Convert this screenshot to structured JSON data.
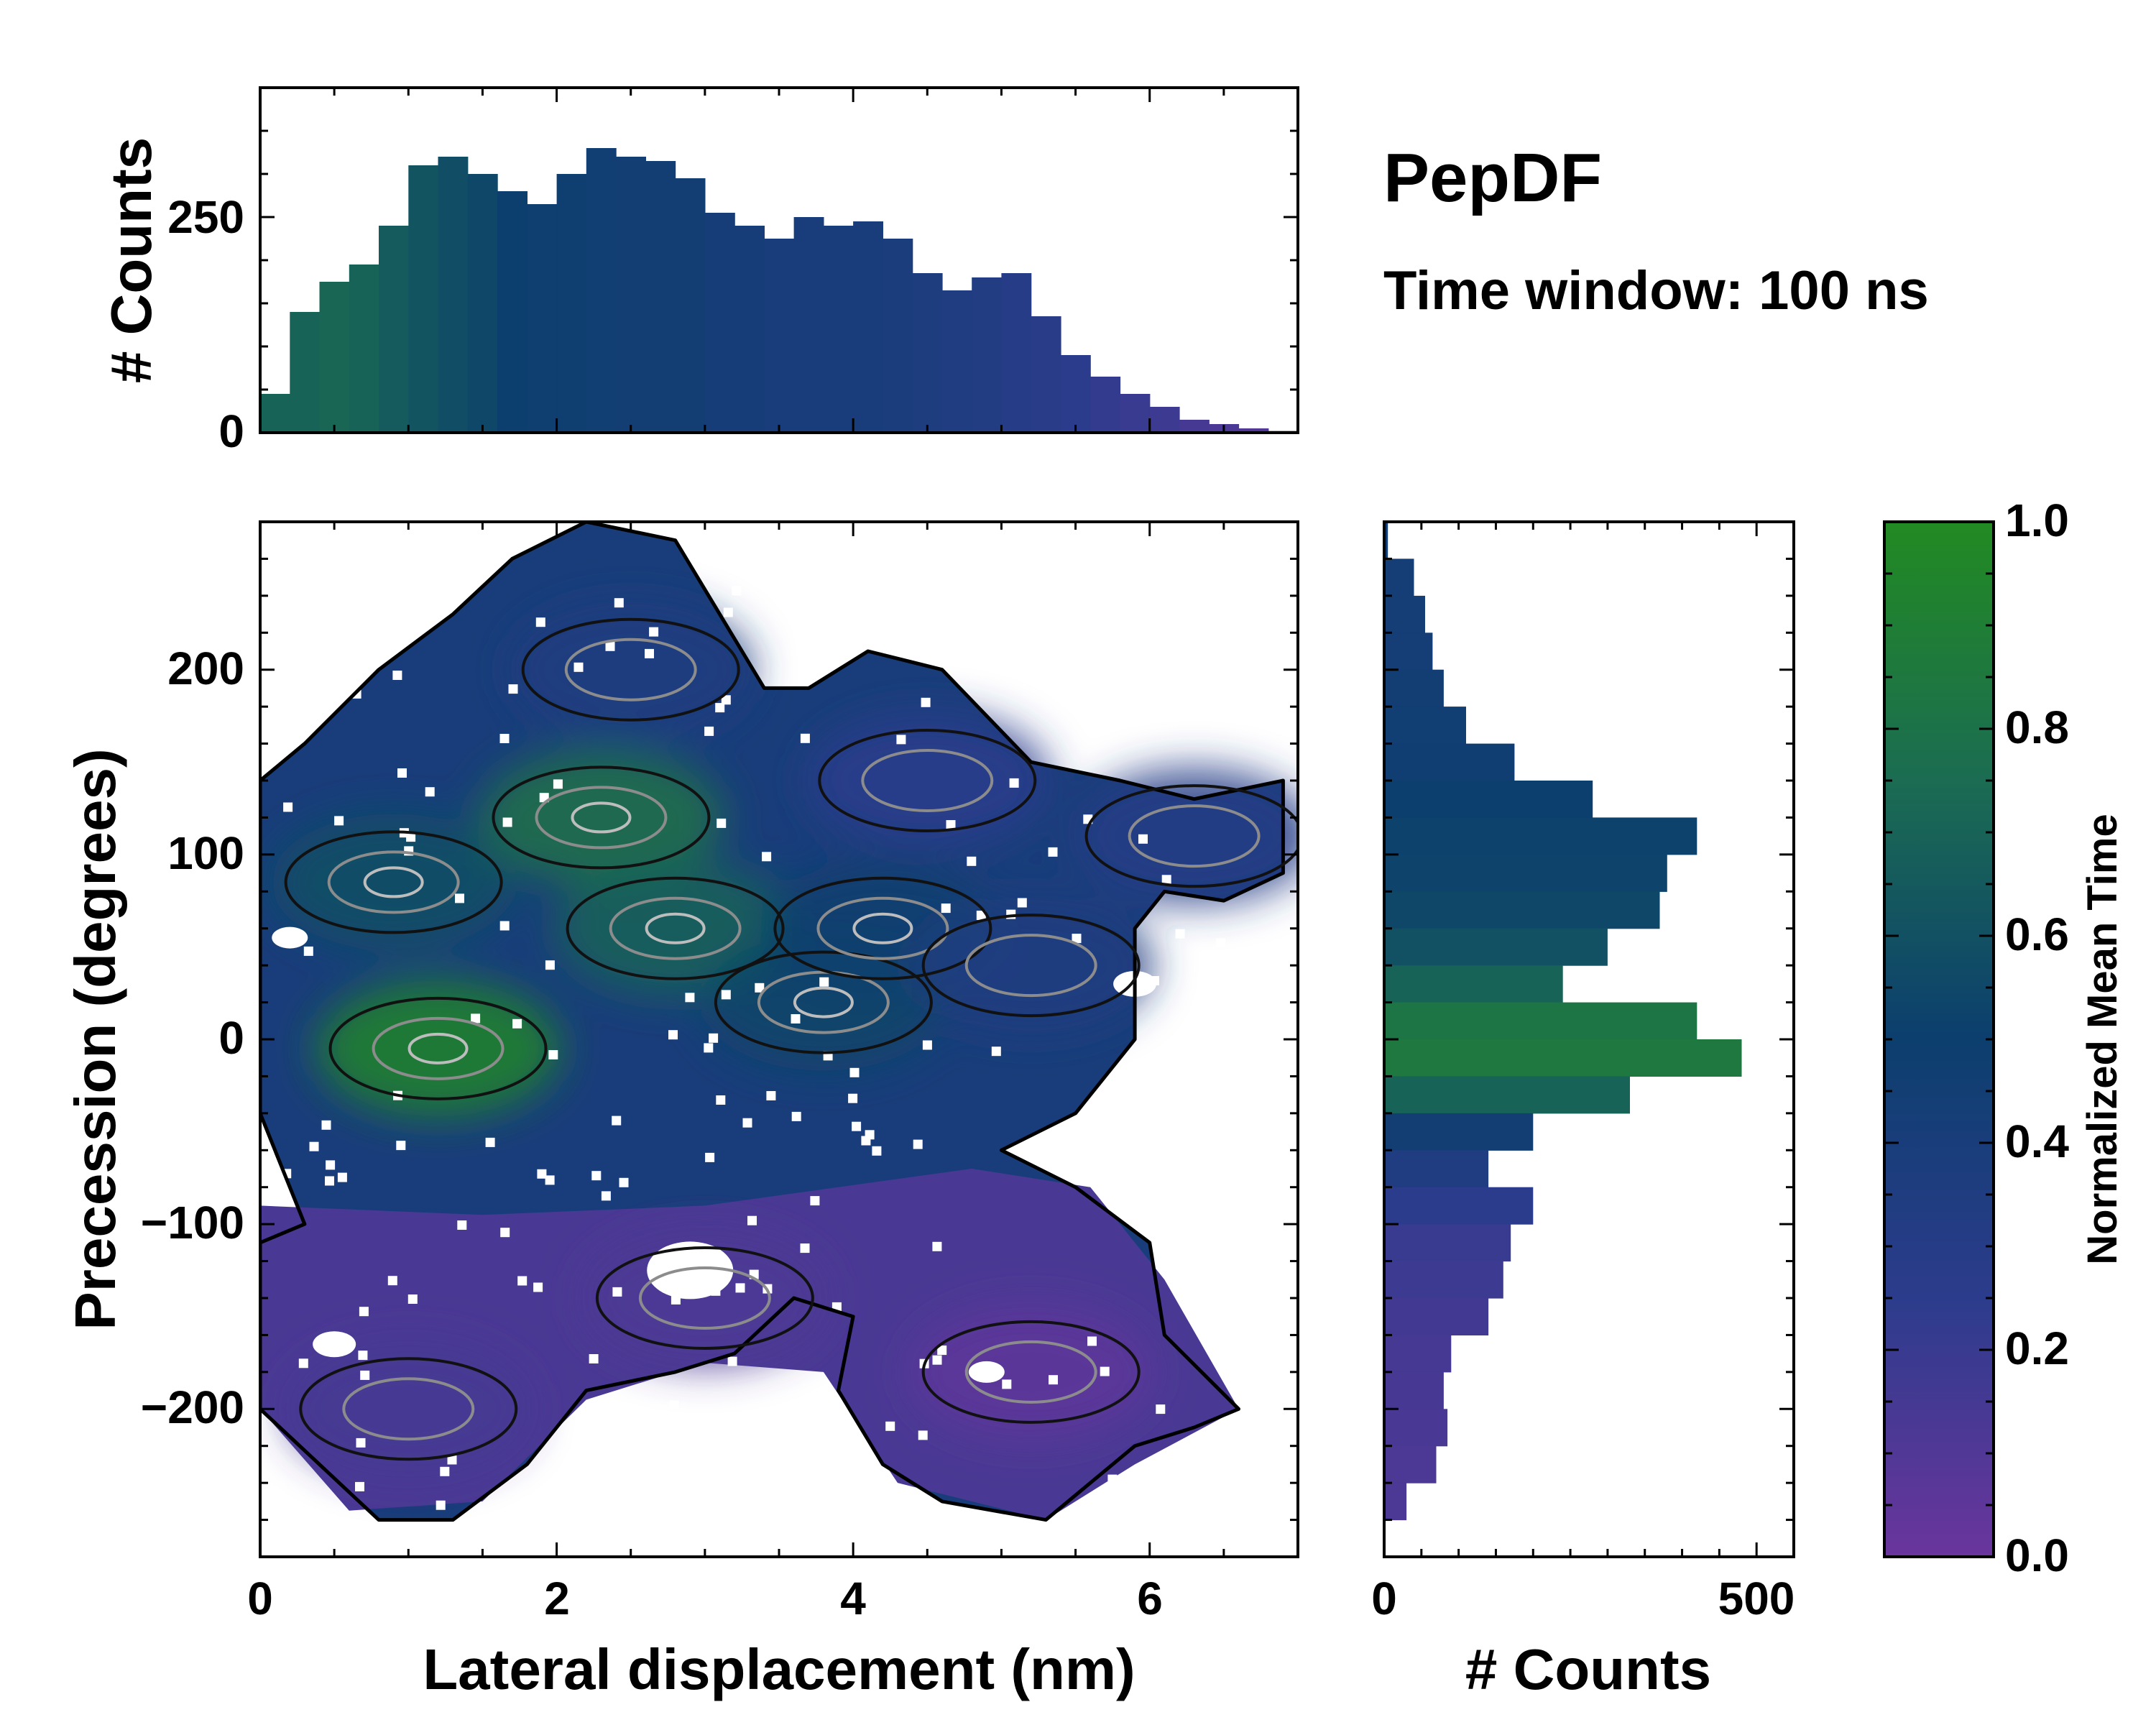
{
  "chart_data": [
    {
      "type": "heatmap",
      "panel": "joint-distribution",
      "xlabel": "Lateral displacement (nm)",
      "ylabel": "Precession (degrees)",
      "xlim": [
        0,
        7
      ],
      "ylim": [
        -280,
        280
      ],
      "xticks": [
        0,
        2,
        4,
        6
      ],
      "xtick_labels": [
        "0",
        "2",
        "4",
        "6"
      ],
      "yticks": [
        -200,
        -100,
        0,
        100,
        200
      ],
      "ytick_labels": [
        "−200",
        "−100",
        "0",
        "100",
        "200"
      ],
      "color_meaning": "Normalized Mean Time",
      "contours": "black outer contours with grey inner density contours",
      "regions": [
        {
          "x_center": 1.2,
          "y_center": -5,
          "color_value": 0.95
        },
        {
          "x_center": 0.9,
          "y_center": 85,
          "color_value": 0.6
        },
        {
          "x_center": 2.3,
          "y_center": 120,
          "color_value": 0.8
        },
        {
          "x_center": 2.8,
          "y_center": 60,
          "color_value": 0.7
        },
        {
          "x_center": 3.8,
          "y_center": 20,
          "color_value": 0.55
        },
        {
          "x_center": 4.2,
          "y_center": 60,
          "color_value": 0.5
        },
        {
          "x_center": 2.5,
          "y_center": 200,
          "color_value": 0.35
        },
        {
          "x_center": 4.5,
          "y_center": 140,
          "color_value": 0.25
        },
        {
          "x_center": 6.3,
          "y_center": 110,
          "color_value": 0.3
        },
        {
          "x_center": 5.2,
          "y_center": 40,
          "color_value": 0.35
        },
        {
          "x_center": 1.0,
          "y_center": -200,
          "color_value": 0.15
        },
        {
          "x_center": 3.0,
          "y_center": -140,
          "color_value": 0.12
        },
        {
          "x_center": 5.2,
          "y_center": -180,
          "color_value": 0.05
        }
      ]
    },
    {
      "type": "bar",
      "panel": "top-marginal-histogram",
      "ylabel": "# Counts",
      "xlim": [
        0,
        7
      ],
      "ylim": [
        0,
        400
      ],
      "yticks": [
        0,
        250
      ],
      "ytick_labels": [
        "0",
        "250"
      ],
      "x": [
        0.1,
        0.3,
        0.5,
        0.7,
        0.9,
        1.1,
        1.3,
        1.5,
        1.7,
        1.9,
        2.1,
        2.3,
        2.5,
        2.7,
        2.9,
        3.1,
        3.3,
        3.5,
        3.7,
        3.9,
        4.1,
        4.3,
        4.5,
        4.7,
        4.9,
        5.1,
        5.3,
        5.5,
        5.7,
        5.9,
        6.1,
        6.3,
        6.5,
        6.7,
        6.9
      ],
      "values": [
        45,
        140,
        175,
        195,
        240,
        310,
        320,
        300,
        280,
        265,
        300,
        330,
        320,
        315,
        295,
        255,
        240,
        225,
        250,
        240,
        245,
        225,
        185,
        165,
        180,
        185,
        135,
        90,
        65,
        45,
        30,
        15,
        10,
        5,
        2
      ],
      "color_values": [
        0.7,
        0.7,
        0.72,
        0.7,
        0.65,
        0.62,
        0.58,
        0.55,
        0.5,
        0.48,
        0.48,
        0.46,
        0.45,
        0.45,
        0.45,
        0.42,
        0.42,
        0.4,
        0.4,
        0.4,
        0.4,
        0.38,
        0.36,
        0.35,
        0.33,
        0.3,
        0.28,
        0.25,
        0.22,
        0.2,
        0.18,
        0.15,
        0.12,
        0.1,
        0.1
      ]
    },
    {
      "type": "bar",
      "panel": "right-marginal-histogram",
      "orientation": "horizontal",
      "xlabel": "# Counts",
      "xlim": [
        0,
        550
      ],
      "xticks": [
        0,
        500
      ],
      "xtick_labels": [
        "0",
        "500"
      ],
      "ylim": [
        -280,
        280
      ],
      "y": [
        270,
        250,
        230,
        210,
        190,
        170,
        150,
        130,
        110,
        90,
        70,
        50,
        30,
        10,
        -10,
        -30,
        -50,
        -70,
        -90,
        -110,
        -130,
        -150,
        -170,
        -190,
        -210,
        -230,
        -250,
        -270
      ],
      "values": [
        5,
        40,
        55,
        65,
        80,
        110,
        175,
        280,
        420,
        380,
        370,
        300,
        240,
        420,
        480,
        330,
        200,
        140,
        200,
        170,
        160,
        140,
        90,
        80,
        85,
        70,
        30,
        0
      ],
      "color_values": [
        0.45,
        0.44,
        0.43,
        0.44,
        0.45,
        0.46,
        0.47,
        0.5,
        0.52,
        0.53,
        0.55,
        0.6,
        0.7,
        0.82,
        0.85,
        0.7,
        0.45,
        0.35,
        0.25,
        0.2,
        0.18,
        0.16,
        0.15,
        0.14,
        0.13,
        0.12,
        0.12,
        0.12
      ]
    },
    {
      "type": "colorbar",
      "panel": "colorbar",
      "label": "Normalized Mean Time",
      "range": [
        0.0,
        1.0
      ],
      "ticks": [
        0.0,
        0.2,
        0.4,
        0.6,
        0.8,
        1.0
      ],
      "tick_labels": [
        "0.0",
        "0.2",
        "0.4",
        "0.6",
        "0.8",
        "1.0"
      ]
    }
  ],
  "heading": {
    "title": "PepDF",
    "subtitle": "Time window: 100 ns"
  },
  "colors": {
    "low": "#6a359d",
    "mid_low": "#2c3c8c",
    "mid": "#0c3e6e",
    "mid_high": "#1b6c52",
    "high": "#228a22",
    "contour_outer": "#000000",
    "contour_inner": "#8c8c8c"
  }
}
